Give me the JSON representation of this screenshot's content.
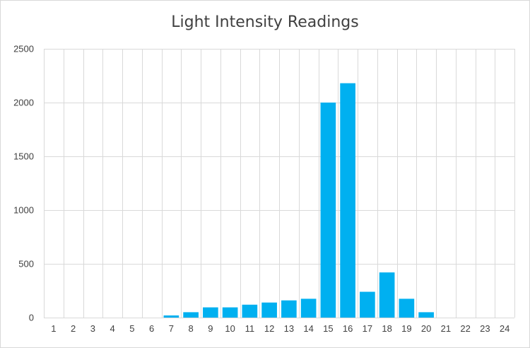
{
  "chart_data": {
    "type": "bar",
    "title": "Light Intensity Readings",
    "xlabel": "",
    "ylabel": "",
    "categories": [
      "1",
      "2",
      "3",
      "4",
      "5",
      "6",
      "7",
      "8",
      "9",
      "10",
      "11",
      "12",
      "13",
      "14",
      "15",
      "16",
      "17",
      "18",
      "19",
      "20",
      "21",
      "22",
      "23",
      "24"
    ],
    "values": [
      0,
      0,
      0,
      0,
      0,
      0,
      20,
      50,
      95,
      95,
      120,
      140,
      160,
      175,
      2000,
      2180,
      240,
      420,
      175,
      50,
      0,
      0,
      0,
      0
    ],
    "ylim": [
      0,
      2500
    ],
    "yticks": [
      0,
      500,
      1000,
      1500,
      2000,
      2500
    ],
    "grid": "both",
    "bar_color": "#00b0f0",
    "grid_color": "#d9d9d9",
    "legend": "none"
  }
}
